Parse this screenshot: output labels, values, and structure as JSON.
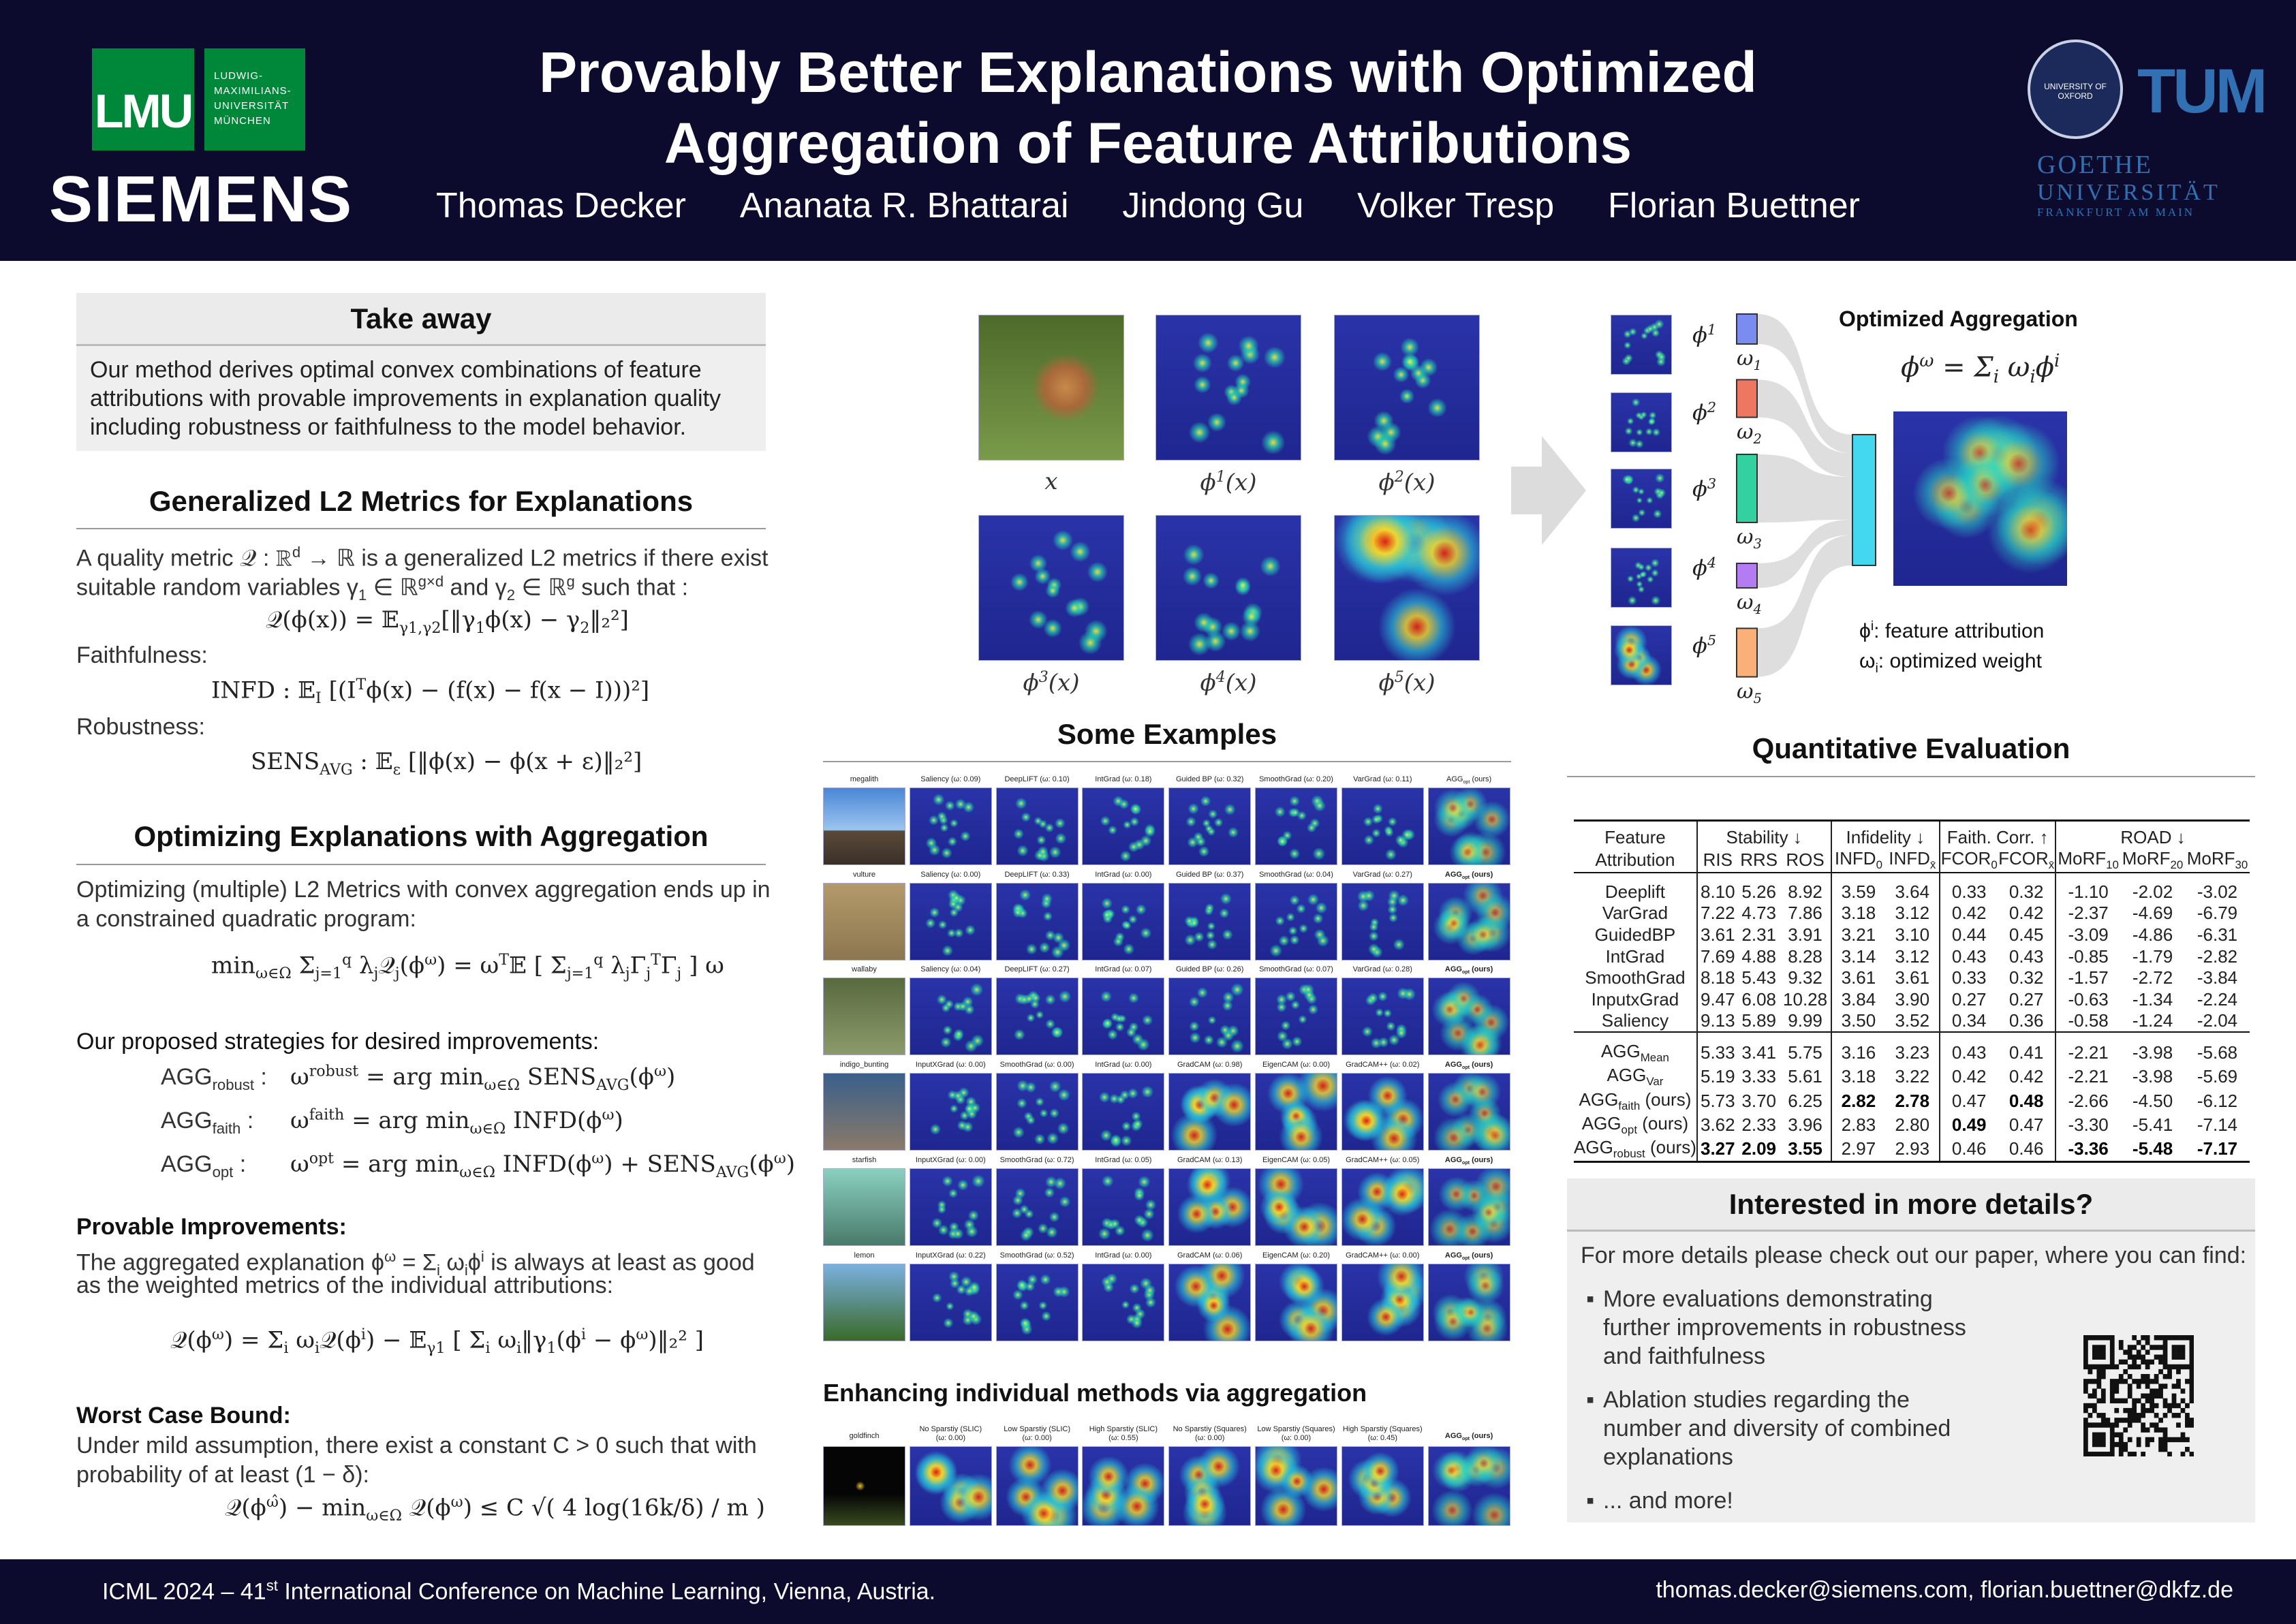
{
  "header": {
    "title_line1": "Provably Better Explanations with Optimized",
    "title_line2": "Aggregation of Feature Attributions",
    "authors": [
      "Thomas Decker",
      "Ananata R. Bhattarai",
      "Jindong Gu",
      "Volker Tresp",
      "Florian Buettner"
    ],
    "logos": {
      "lmu": "LMU",
      "lmu_name": [
        "LUDWIG-",
        "MAXIMILIANS-",
        "UNIVERSITÄT",
        "MÜNCHEN"
      ],
      "siemens": "SIEMENS",
      "oxford": "UNIVERSITY OF OXFORD",
      "tum": "TUM",
      "goethe": [
        "GOETHE",
        "UNIVERSITÄT",
        "FRANKFURT AM MAIN"
      ]
    },
    "colors": {
      "background": "#0c0b2d",
      "lmu_green": "#00883a",
      "tum_blue": "#3070b3"
    }
  },
  "takeaway": {
    "title": "Take away",
    "body": "Our method derives optimal convex combinations of feature attributions with provable improvements in explanation quality including robustness or faithfulness to the model behavior."
  },
  "metrics": {
    "title": "Generalized L2 Metrics for Explanations",
    "line1": "A quality metric 𝒬 : ℝ^{d} → ℝ is a generalized L2 metrics if there exist",
    "line2": "suitable random variables γ_{1} ∈ ℝ^{g×d} and γ_{2} ∈ ℝ^{g} such that :",
    "formula": "𝒬(ϕ(x)) = 𝔼_{γ1,γ2}[‖γ_{1}ϕ(x) − γ_{2}‖₂²]",
    "faith_label": "Faithfulness:",
    "infd": "INFD : 𝔼_{I} [(I^{T}ϕ(x) − (f(x) − f(x − I)))²]",
    "robust_label": "Robustness:",
    "sens": "SENS_{AVG} : 𝔼_{ε} [‖ϕ(x) − ϕ(x + ε)‖₂²]"
  },
  "optimizing": {
    "title": "Optimizing Explanations with Aggregation",
    "line1": "Optimizing (multiple) L2 Metrics with convex aggregation ends up in",
    "line2": "a constrained quadratic program:",
    "qp": "min_{ω∈Ω}  Σ_{j=1}^{q} λ_{j}𝒬_{j}(ϕ^{ω}) = ω^{T}𝔼 [ Σ_{j=1}^{q} λ_{j}Γ_{j}^{T}Γ_{j} ] ω",
    "strategies_label": "Our proposed strategies for desired improvements:",
    "strategies": [
      {
        "name": "AGG_{robust} :",
        "formula": "ω^{robust} = arg min_{ω∈Ω} SENS_{AVG}(ϕ^{ω})"
      },
      {
        "name": "AGG_{faith} :",
        "formula": "ω^{faith} = arg min_{ω∈Ω} INFD(ϕ^{ω})"
      },
      {
        "name": "AGG_{opt} :",
        "formula": "ω^{opt} = arg min_{ω∈Ω} INFD(ϕ^{ω}) + SENS_{AVG}(ϕ^{ω})"
      }
    ],
    "provable_label": "Provable Improvements:",
    "provable_line1": "The aggregated explanation ϕ^{ω} = Σ_{i} ω_{i}ϕ^{i} is always at least as good",
    "provable_line2": "as the weighted metrics of the individual attributions:",
    "provable_formula": "𝒬(ϕ^{ω}) = Σ_{i} ω_{i}𝒬(ϕ^{i}) − 𝔼_{γ1} [ Σ_{i} ω_{i}‖γ_{1}(ϕ^{i} − ϕ^{ω})‖₂² ]",
    "worst_label": "Worst Case Bound:",
    "worst_line1": "Under mild assumption, there exist a constant C > 0 such that with",
    "worst_line2": "probability of at least (1 − δ):",
    "worst_formula": "𝒬(ϕ^{ω̂}) − min_{ω∈Ω} 𝒬(ϕ^{ω}) ≤ C √( 4 log(16k/δ) / m )"
  },
  "teaser": {
    "labels": [
      "x",
      "ϕ^{1}(x)",
      "ϕ^{2}(x)",
      "ϕ^{3}(x)",
      "ϕ^{4}(x)",
      "ϕ^{5}(x)"
    ]
  },
  "diagram": {
    "title": "Optimized Aggregation",
    "formula": "ϕ^{ω} = Σ_{i} ω_{i}ϕ^{i}",
    "phis": [
      "ϕ^{1}",
      "ϕ^{2}",
      "ϕ^{3}",
      "ϕ^{4}",
      "ϕ^{5}"
    ],
    "weights": [
      "ω_{1}",
      "ω_{2}",
      "ω_{3}",
      "ω_{4}",
      "ω_{5}"
    ],
    "weight_colors": [
      "#7b8cf0",
      "#ee7762",
      "#33d1a0",
      "#b57bf2",
      "#fbb07a"
    ],
    "agg_color": "#44d8f0",
    "weight_levels": [
      0.15,
      0.22,
      0.5,
      0.1,
      0.32
    ],
    "legend": [
      "ϕ^{i}: feature attribution",
      "ω_{i}: optimized weight"
    ]
  },
  "examples": {
    "title": "Some Examples",
    "rows": [
      {
        "label": "megalith",
        "methods": [
          "Saliency (ω: 0.09)",
          "DeepLIFT (ω: 0.10)",
          "IntGrad (ω: 0.18)",
          "Guided BP (ω: 0.32)",
          "SmoothGrad (ω: 0.20)",
          "VarGrad (ω: 0.11)"
        ],
        "agg": "AGG_{opt} (ours)",
        "agg_bold": false
      },
      {
        "label": "vulture",
        "methods": [
          "Saliency (ω: 0.00)",
          "DeepLIFT (ω: 0.33)",
          "IntGrad (ω: 0.00)",
          "Guided BP (ω: 0.37)",
          "SmoothGrad (ω: 0.04)",
          "VarGrad (ω: 0.27)"
        ],
        "agg": "AGG_{opt} (ours)",
        "agg_bold": true
      },
      {
        "label": "wallaby",
        "methods": [
          "Saliency (ω: 0.04)",
          "DeepLIFT (ω: 0.27)",
          "IntGrad (ω: 0.07)",
          "Guided BP (ω: 0.26)",
          "SmoothGrad (ω: 0.07)",
          "VarGrad (ω: 0.28)"
        ],
        "agg": "AGG_{opt} (ours)",
        "agg_bold": true
      },
      {
        "label": "indigo_bunting",
        "methods": [
          "InputXGrad (ω: 0.00)",
          "SmoothGrad (ω: 0.00)",
          "IntGrad (ω: 0.00)",
          "GradCAM (ω: 0.98)",
          "EigenCAM (ω: 0.00)",
          "GradCAM++ (ω: 0.02)"
        ],
        "agg": "AGG_{opt} (ours)",
        "agg_bold": true
      },
      {
        "label": "starfish",
        "methods": [
          "InputXGrad (ω: 0.00)",
          "SmoothGrad (ω: 0.72)",
          "IntGrad (ω: 0.05)",
          "GradCAM (ω: 0.13)",
          "EigenCAM (ω: 0.05)",
          "GradCAM++ (ω: 0.05)"
        ],
        "agg": "AGG_{opt} (ours)",
        "agg_bold": true
      },
      {
        "label": "lemon",
        "methods": [
          "InputXGrad (ω: 0.22)",
          "SmoothGrad (ω: 0.52)",
          "IntGrad (ω: 0.00)",
          "GradCAM (ω: 0.06)",
          "EigenCAM (ω: 0.20)",
          "GradCAM++ (ω: 0.00)"
        ],
        "agg": "AGG_{opt} (ours)",
        "agg_bold": true
      }
    ]
  },
  "enhancing": {
    "title": "Enhancing individual methods via aggregation",
    "label": "goldfinch",
    "methods": [
      [
        "No Sparstiy (SLIC)",
        "(ω: 0.00)"
      ],
      [
        "Low Sparstiy (SLIC)",
        "(ω: 0.00)"
      ],
      [
        "High Sparstiy (SLIC)",
        "(ω: 0.55)"
      ],
      [
        "No Sparstiy (Squares)",
        "(ω: 0.00)"
      ],
      [
        "Low Sparstiy (Squares)",
        "(ω: 0.00)"
      ],
      [
        "High Sparstiy (Squares)",
        "(ω: 0.45)"
      ]
    ],
    "agg": "AGG_{opt} (ours)"
  },
  "quant": {
    "title": "Quantitative Evaluation",
    "groups": [
      "Stability ↓",
      "Infidelity ↓",
      "Faith. Corr. ↑",
      "ROAD ↓"
    ],
    "row_header": [
      "Feature",
      "Attribution"
    ],
    "columns": [
      "RIS",
      "RRS",
      "ROS",
      "INFD_{0}",
      "INFD_{x̄}",
      "FCOR_{0}",
      "FCOR_{x̄}",
      "MoRF_{10}",
      "MoRF_{20}",
      "MoRF_{30}"
    ],
    "baselines": [
      {
        "name": "Deeplift",
        "values": [
          "8.10",
          "5.26",
          "8.92",
          "3.59",
          "3.64",
          "0.33",
          "0.32",
          "-1.10",
          "-2.02",
          "-3.02"
        ]
      },
      {
        "name": "VarGrad",
        "values": [
          "7.22",
          "4.73",
          "7.86",
          "3.18",
          "3.12",
          "0.42",
          "0.42",
          "-2.37",
          "-4.69",
          "-6.79"
        ]
      },
      {
        "name": "GuidedBP",
        "values": [
          "3.61",
          "2.31",
          "3.91",
          "3.21",
          "3.10",
          "0.44",
          "0.45",
          "-3.09",
          "-4.86",
          "-6.31"
        ]
      },
      {
        "name": "IntGrad",
        "values": [
          "7.69",
          "4.88",
          "8.28",
          "3.14",
          "3.12",
          "0.43",
          "0.43",
          "-0.85",
          "-1.79",
          "-2.82"
        ]
      },
      {
        "name": "SmoothGrad",
        "values": [
          "8.18",
          "5.43",
          "9.32",
          "3.61",
          "3.61",
          "0.33",
          "0.32",
          "-1.57",
          "-2.72",
          "-3.84"
        ]
      },
      {
        "name": "InputxGrad",
        "values": [
          "9.47",
          "6.08",
          "10.28",
          "3.84",
          "3.90",
          "0.27",
          "0.27",
          "-0.63",
          "-1.34",
          "-2.24"
        ]
      },
      {
        "name": "Saliency",
        "values": [
          "9.13",
          "5.89",
          "9.99",
          "3.50",
          "3.52",
          "0.34",
          "0.36",
          "-0.58",
          "-1.24",
          "-2.04"
        ]
      }
    ],
    "aggregates": [
      {
        "name": "AGG_{Mean}",
        "values": [
          "5.33",
          "3.41",
          "5.75",
          "3.16",
          "3.23",
          "0.43",
          "0.41",
          "-2.21",
          "-3.98",
          "-5.68"
        ],
        "bold": []
      },
      {
        "name": "AGG_{Var}",
        "values": [
          "5.19",
          "3.33",
          "5.61",
          "3.18",
          "3.22",
          "0.42",
          "0.42",
          "-2.21",
          "-3.98",
          "-5.69"
        ],
        "bold": []
      },
      {
        "name": "AGG_{faith} (ours)",
        "values": [
          "5.73",
          "3.70",
          "6.25",
          "2.82",
          "2.78",
          "0.47",
          "0.48",
          "-2.66",
          "-4.50",
          "-6.12"
        ],
        "bold": [
          3,
          4,
          6
        ]
      },
      {
        "name": "AGG_{opt} (ours)",
        "values": [
          "3.62",
          "2.33",
          "3.96",
          "2.83",
          "2.80",
          "0.49",
          "0.47",
          "-3.30",
          "-5.41",
          "-7.14"
        ],
        "bold": [
          5
        ]
      },
      {
        "name": "AGG_{robust} (ours)",
        "values": [
          "3.27",
          "2.09",
          "3.55",
          "2.97",
          "2.93",
          "0.46",
          "0.46",
          "-3.36",
          "-5.48",
          "-7.17"
        ],
        "bold": [
          0,
          1,
          2,
          7,
          8,
          9
        ]
      }
    ]
  },
  "details": {
    "title": "Interested in more details?",
    "intro": "For more details please check out our paper, where you can find:",
    "bullets": [
      "More evaluations demonstrating further improvements in robustness and faithfulness",
      "Ablation studies regarding the number and diversity of combined explanations",
      "... and more!"
    ]
  },
  "footer": {
    "left": "ICML 2024 – 41^{st} International Conference on Machine Learning, Vienna, Austria.",
    "right": "thomas.decker@siemens.com, florian.buettner@dkfz.de"
  }
}
